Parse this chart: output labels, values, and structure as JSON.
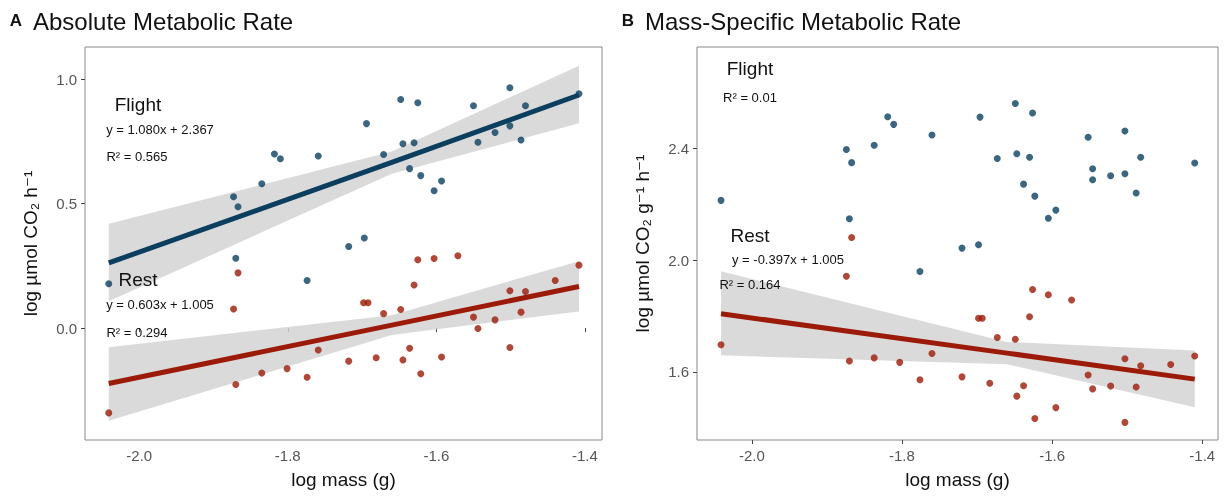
{
  "chart_data": [
    {
      "type": "scatter",
      "title": "Absolute Metabolic Rate",
      "xlabel": "log mass (g)",
      "ylabel": "log µmol CO₂ h⁻¹",
      "xlim": [
        -2.073,
        -1.377
      ],
      "ylim": [
        -0.45,
        1.13
      ],
      "xticks": [
        {
          "value": -2,
          "label": "-2.0"
        },
        -1.8,
        -1.6,
        -1.4
      ],
      "yticks": [
        {
          "value": 0,
          "label": "0.0"
        },
        0.5,
        {
          "value": 1,
          "label": "1.0"
        }
      ],
      "marker": "circle",
      "annotations": [
        "A",
        "Flight",
        "y = 1.080x + 2.367",
        "R² = 0.565",
        "Rest",
        "y = 0.603x + 1.005",
        "R² = 0.294"
      ],
      "series": [
        {
          "color": "#0b3e5f",
          "x": [
            -1.648,
            -1.625,
            -1.501,
            -1.55,
            -1.408,
            -1.48,
            -1.694,
            -1.501,
            -1.521,
            -1.544,
            -1.486,
            -1.645,
            -1.63,
            -1.671,
            -1.818,
            -1.81,
            -1.759,
            -1.636,
            -1.621,
            -1.593,
            -1.603,
            -1.835,
            -1.873,
            -1.867,
            -1.87,
            -1.718,
            -1.697,
            -1.774,
            -2.041
          ],
          "values": [
            0.919,
            0.906,
            0.966,
            0.894,
            0.942,
            0.894,
            0.822,
            0.813,
            0.786,
            0.747,
            0.756,
            0.741,
            0.745,
            0.698,
            0.7,
            0.681,
            0.692,
            0.641,
            0.613,
            0.591,
            0.552,
            0.58,
            0.528,
            0.488,
            0.281,
            0.328,
            0.362,
            0.191,
            0.178
          ]
        },
        {
          "color": "#9c1a08",
          "x": [
            -1.625,
            -1.603,
            -1.571,
            -1.408,
            -1.867,
            -1.44,
            -1.501,
            -1.48,
            -1.63,
            -1.873,
            -1.698,
            -1.692,
            -1.671,
            -1.648,
            -1.55,
            -1.521,
            -1.544,
            -1.486,
            -1.501,
            -1.636,
            -1.759,
            -1.681,
            -1.718,
            -1.645,
            -1.593,
            -1.621,
            -1.835,
            -1.801,
            -1.774,
            -1.87,
            -2.041
          ],
          "values": [
            0.275,
            0.28,
            0.291,
            0.253,
            0.222,
            0.191,
            0.15,
            0.147,
            0.173,
            0.077,
            0.102,
            0.102,
            0.058,
            0.075,
            0.044,
            0.033,
            -0.002,
            0.064,
            -0.078,
            -0.081,
            -0.088,
            -0.119,
            -0.133,
            -0.128,
            -0.116,
            -0.184,
            -0.181,
            -0.163,
            -0.198,
            -0.227,
            -0.341
          ]
        },
        {
          "type": "line",
          "marker": "none",
          "color": "#0b3e5f",
          "x": [
            -2.041,
            -1.66,
            -1.408
          ],
          "values": [
            0.262,
            0.666,
            0.937
          ],
          "lower": [
            0.108,
            0.62,
            0.823
          ],
          "upper": [
            0.419,
            0.71,
            1.055
          ]
        },
        {
          "type": "line",
          "marker": "none",
          "color": "#9c1a08",
          "x": [
            -2.041,
            -1.66,
            -1.408
          ],
          "values": [
            -0.223,
            0.012,
            0.167
          ],
          "lower": [
            -0.373,
            -0.028,
            0.067
          ],
          "upper": [
            -0.077,
            0.052,
            0.269
          ]
        }
      ]
    },
    {
      "type": "scatter",
      "title": "Mass-Specific Metabolic Rate",
      "xlabel": "log mass (g)",
      "ylabel": "log µmol CO₂ g⁻¹ h⁻¹",
      "xlim": [
        -2.073,
        -1.379
      ],
      "ylim": [
        1.356,
        2.763
      ],
      "xticks": [
        {
          "value": -2,
          "label": "-2.0"
        },
        -1.8,
        -1.6,
        -1.4
      ],
      "yticks": [
        1.6,
        {
          "value": 2,
          "label": "2.0"
        },
        2.4
      ],
      "marker": "circle",
      "annotations": [
        "B",
        "Flight",
        "R² = 0.01",
        "Rest",
        "y = -0.397x + 1.005",
        "R² = 0.164"
      ],
      "series": [
        {
          "color": "#0b3e5f",
          "x": [
            -2.041,
            -1.649,
            -1.626,
            -1.819,
            -1.811,
            -1.696,
            -1.76,
            -1.552,
            -1.503,
            -1.874,
            -1.867,
            -1.837,
            -1.673,
            -1.647,
            -1.63,
            -1.482,
            -1.41,
            -1.546,
            -1.546,
            -1.522,
            -1.503,
            -1.488,
            -1.638,
            -1.623,
            -1.595,
            -1.605,
            -1.87,
            -1.72,
            -1.698,
            -1.776
          ],
          "values": [
            2.214,
            2.561,
            2.527,
            2.513,
            2.486,
            2.512,
            2.448,
            2.44,
            2.462,
            2.396,
            2.349,
            2.411,
            2.364,
            2.381,
            2.368,
            2.368,
            2.348,
            2.327,
            2.288,
            2.302,
            2.309,
            2.24,
            2.272,
            2.229,
            2.179,
            2.15,
            2.148,
            2.043,
            2.055,
            1.959
          ]
        },
        {
          "color": "#9c1a08",
          "x": [
            -1.867,
            -1.874,
            -1.626,
            -1.605,
            -1.574,
            -1.698,
            -1.693,
            -1.63,
            -1.673,
            -1.649,
            -2.041,
            -1.76,
            -1.41,
            -1.503,
            -1.87,
            -1.837,
            -1.803,
            -1.482,
            -1.442,
            -1.552,
            -1.776,
            -1.72,
            -1.683,
            -1.638,
            -1.522,
            -1.488,
            -1.546,
            -1.647,
            -1.595,
            -1.623,
            -1.503
          ],
          "values": [
            2.081,
            1.942,
            1.895,
            1.876,
            1.857,
            1.792,
            1.792,
            1.797,
            1.723,
            1.717,
            1.697,
            1.666,
            1.657,
            1.647,
            1.639,
            1.65,
            1.634,
            1.622,
            1.626,
            1.589,
            1.572,
            1.582,
            1.559,
            1.55,
            1.549,
            1.546,
            1.539,
            1.513,
            1.472,
            1.433,
            1.419
          ]
        },
        {
          "type": "line",
          "marker": "none",
          "color": "#9c1a08",
          "x": [
            -2.041,
            -1.66,
            -1.41
          ],
          "values": [
            1.808,
            1.667,
            1.574
          ],
          "lower": [
            1.659,
            1.627,
            1.473
          ],
          "upper": [
            1.96,
            1.707,
            1.676
          ]
        }
      ]
    }
  ]
}
